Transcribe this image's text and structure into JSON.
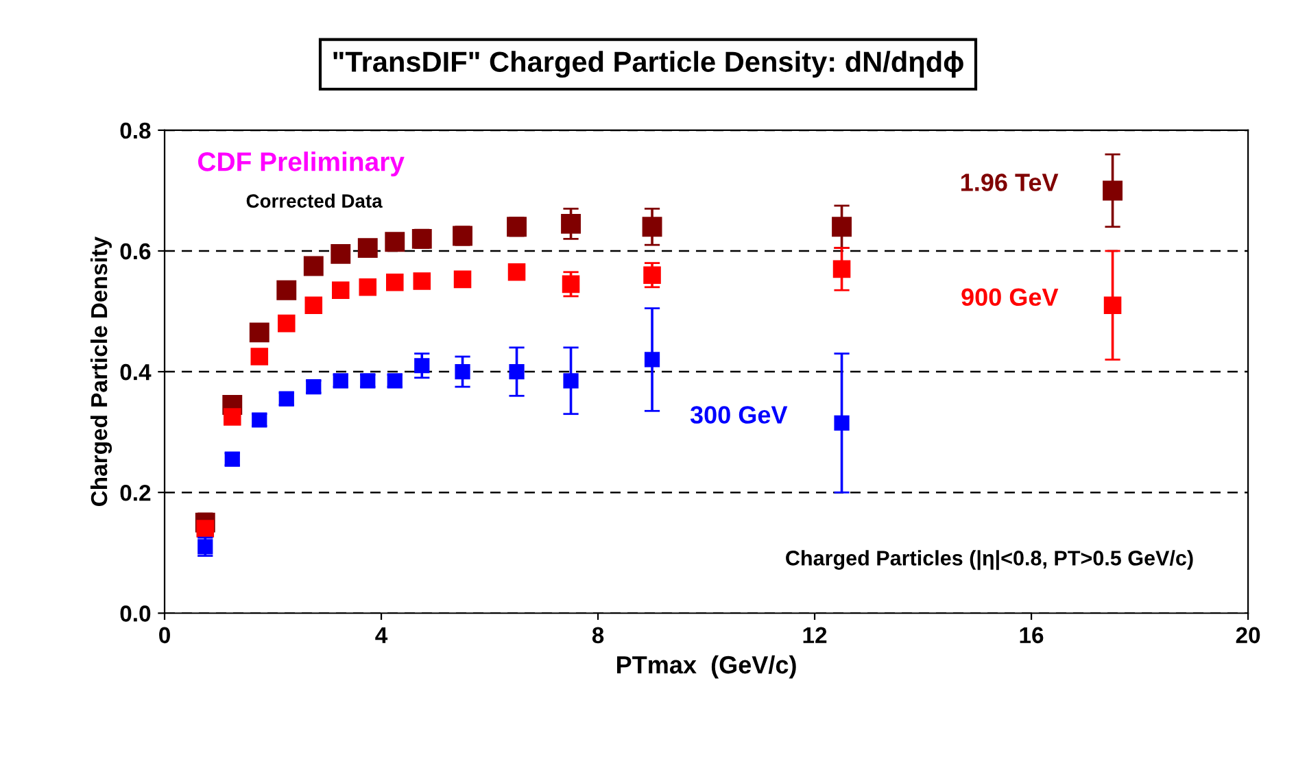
{
  "chart_data": {
    "type": "scatter",
    "title": "\"TransDIF\" Charged Particle Density: dN/dηdϕ",
    "xlabel": "PTmax  (GeV/c)",
    "ylabel": "Charged Particle Density",
    "x": [
      0.75,
      1.25,
      1.75,
      2.25,
      2.75,
      3.25,
      3.75,
      4.25,
      4.75,
      5.5,
      6.5,
      7.5,
      9.0,
      12.5,
      17.5
    ],
    "series": [
      {
        "name": "1.96 TeV",
        "color": "#800000",
        "values": [
          0.15,
          0.345,
          0.465,
          0.535,
          0.575,
          0.595,
          0.605,
          0.615,
          0.62,
          0.625,
          0.64,
          0.645,
          0.64,
          0.64,
          0.7
        ],
        "errors": [
          0.015,
          0.01,
          0.01,
          0.01,
          0.01,
          0.01,
          0.01,
          0.01,
          0.015,
          0.015,
          0.015,
          0.025,
          0.03,
          0.035,
          0.06
        ]
      },
      {
        "name": "900 GeV",
        "color": "#ff0000",
        "values": [
          0.14,
          0.325,
          0.425,
          0.48,
          0.51,
          0.535,
          0.54,
          0.548,
          0.55,
          0.553,
          0.565,
          0.545,
          0.56,
          0.57,
          0.51
        ],
        "errors": [
          0.01,
          0.01,
          0.01,
          0.01,
          0.01,
          0.01,
          0.01,
          0.01,
          0.01,
          0.01,
          0.012,
          0.02,
          0.02,
          0.035,
          0.09
        ]
      },
      {
        "name": "300 GeV",
        "color": "#0000ff",
        "values": [
          0.11,
          0.255,
          0.32,
          0.355,
          0.375,
          0.385,
          0.385,
          0.385,
          0.41,
          0.4,
          0.4,
          0.385,
          0.42,
          0.315,
          null
        ],
        "errors": [
          0.015,
          0.01,
          0.01,
          0.01,
          0.01,
          0.01,
          0.01,
          0.01,
          0.02,
          0.025,
          0.04,
          0.055,
          0.085,
          0.115,
          null
        ]
      }
    ],
    "xlim": [
      0,
      20
    ],
    "xticks": [
      0,
      4,
      8,
      12,
      16,
      20
    ],
    "ylim": [
      0,
      0.8
    ],
    "yticks": [
      {
        "value": 0,
        "label": "0.0"
      },
      0.2,
      0.4,
      0.6,
      0.8
    ],
    "grid": "y",
    "marker": "square",
    "legend": false,
    "annotations": [
      "CDF Preliminary",
      "Corrected Data",
      "Charged Particles (|η|<0.8, PT>0.5 GeV/c)"
    ]
  }
}
